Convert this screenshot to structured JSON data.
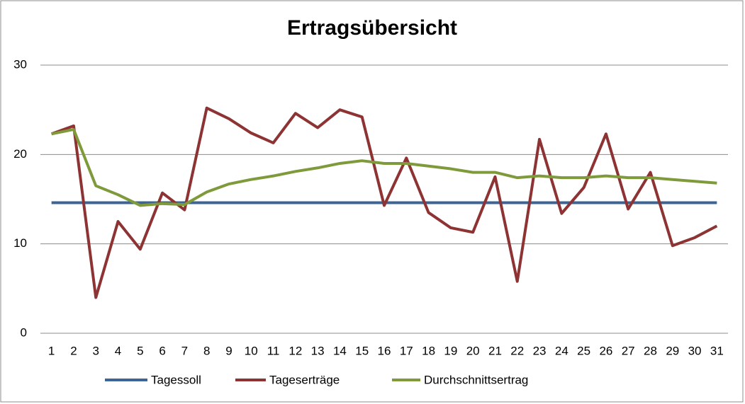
{
  "chart_data": {
    "type": "line",
    "title": "Ertragsübersicht",
    "categories": [
      "1",
      "2",
      "3",
      "4",
      "5",
      "6",
      "7",
      "8",
      "9",
      "10",
      "11",
      "12",
      "13",
      "14",
      "15",
      "16",
      "17",
      "18",
      "19",
      "20",
      "21",
      "22",
      "23",
      "24",
      "25",
      "26",
      "27",
      "28",
      "29",
      "30",
      "31"
    ],
    "series": [
      {
        "name": "Tagessoll",
        "color": "#3c6496",
        "values": [
          14.6,
          14.6,
          14.6,
          14.6,
          14.6,
          14.6,
          14.6,
          14.6,
          14.6,
          14.6,
          14.6,
          14.6,
          14.6,
          14.6,
          14.6,
          14.6,
          14.6,
          14.6,
          14.6,
          14.6,
          14.6,
          14.6,
          14.6,
          14.6,
          14.6,
          14.6,
          14.6,
          14.6,
          14.6,
          14.6,
          14.6
        ]
      },
      {
        "name": "Tageserträge",
        "color": "#8e3333",
        "values": [
          22.3,
          23.2,
          4.0,
          12.5,
          9.4,
          15.7,
          13.8,
          25.2,
          24.0,
          22.4,
          21.3,
          24.6,
          23.0,
          25.0,
          24.2,
          14.3,
          19.6,
          13.5,
          11.8,
          11.3,
          17.5,
          5.8,
          21.7,
          13.4,
          16.3,
          22.3,
          13.9,
          18.0,
          9.8,
          10.7,
          12.0
        ]
      },
      {
        "name": "Durchschnittsertrag",
        "color": "#7e9a3a",
        "values": [
          22.3,
          22.8,
          16.5,
          15.5,
          14.3,
          14.5,
          14.4,
          15.8,
          16.7,
          17.2,
          17.6,
          18.1,
          18.5,
          19.0,
          19.3,
          19.0,
          19.0,
          18.7,
          18.4,
          18.0,
          18.0,
          17.4,
          17.6,
          17.4,
          17.4,
          17.6,
          17.4,
          17.4,
          17.2,
          17.0,
          16.8
        ]
      }
    ],
    "ylim": [
      0,
      30
    ],
    "yticks": [
      0,
      10,
      20,
      30
    ],
    "grid": true,
    "legend": "bottom"
  }
}
